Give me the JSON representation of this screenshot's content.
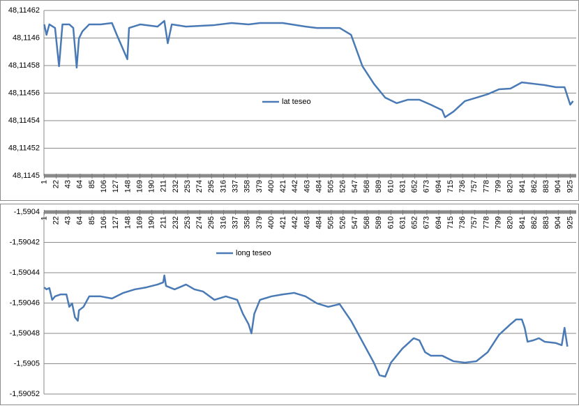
{
  "chart_data": [
    {
      "type": "line",
      "x": [
        1,
        5,
        10,
        20,
        27,
        33,
        45,
        52,
        58,
        62,
        68,
        80,
        100,
        120,
        128,
        147,
        150,
        170,
        200,
        212,
        218,
        225,
        250,
        300,
        330,
        360,
        380,
        420,
        460,
        480,
        520,
        540,
        560,
        580,
        600,
        620,
        640,
        660,
        680,
        700,
        705,
        720,
        740,
        760,
        780,
        800,
        820,
        840,
        860,
        880,
        900,
        915,
        925,
        930
      ],
      "series": [
        {
          "name": "lat teseo",
          "color": "#4a7ab5",
          "values": [
            48.1146099,
            48.1146023,
            48.1146099,
            48.1146073,
            48.1145795,
            48.1146099,
            48.1146099,
            48.1146073,
            48.1145785,
            48.1145997,
            48.1146048,
            48.1146099,
            48.1146099,
            48.1146109,
            48.1146028,
            48.1145846,
            48.1146073,
            48.1146099,
            48.1146083,
            48.1146124,
            48.1145962,
            48.1146099,
            48.1146083,
            48.1146094,
            48.1146109,
            48.1146099,
            48.1146109,
            48.1146109,
            48.1146083,
            48.1146073,
            48.1146073,
            48.1146023,
            48.1145795,
            48.1145668,
            48.1145567,
            48.1145527,
            48.1145552,
            48.1145552,
            48.1145516,
            48.1145476,
            48.1145425,
            48.1145466,
            48.1145542,
            48.1145567,
            48.1145592,
            48.1145628,
            48.1145633,
            48.1145678,
            48.1145668,
            48.1145658,
            48.1145643,
            48.1145643,
            48.1145516,
            48.1145542
          ]
        }
      ],
      "xlim": [
        0.5,
        935.5
      ],
      "xticks": [
        1,
        22,
        43,
        64,
        85,
        106,
        127,
        148,
        169,
        190,
        211,
        232,
        253,
        274,
        295,
        316,
        337,
        358,
        379,
        400,
        421,
        442,
        463,
        484,
        505,
        526,
        547,
        568,
        589,
        610,
        631,
        652,
        673,
        694,
        715,
        736,
        757,
        778,
        799,
        820,
        841,
        862,
        883,
        904,
        925
      ],
      "ylim": [
        48.1145,
        48.11462
      ],
      "yticks": [
        {
          "value": 48.1145,
          "label": "48,1145"
        },
        {
          "value": 48.11452,
          "label": "48,11452"
        },
        {
          "value": 48.11454,
          "label": "48,11454"
        },
        {
          "value": 48.11456,
          "label": "48,11456"
        },
        {
          "value": 48.11458,
          "label": "48,11458"
        },
        {
          "value": 48.1146,
          "label": "48,1146"
        },
        {
          "value": 48.11462,
          "label": "48,11462"
        }
      ],
      "grid": true
    },
    {
      "type": "line",
      "x": [
        1,
        5,
        10,
        15,
        20,
        30,
        40,
        45,
        50,
        55,
        60,
        62,
        70,
        80,
        100,
        120,
        140,
        160,
        180,
        200,
        210,
        212,
        215,
        230,
        250,
        265,
        280,
        300,
        320,
        340,
        350,
        360,
        365,
        370,
        380,
        400,
        420,
        440,
        460,
        480,
        500,
        520,
        540,
        560,
        580,
        590,
        600,
        610,
        630,
        650,
        660,
        670,
        680,
        700,
        720,
        740,
        760,
        780,
        800,
        820,
        830,
        840,
        845,
        850,
        860,
        870,
        880,
        900,
        910,
        915,
        920
      ],
      "series": [
        {
          "name": "long teseo",
          "color": "#4a7ab5",
          "values": [
            -1.5904497,
            -1.590451,
            -1.5904501,
            -1.5904579,
            -1.5904556,
            -1.5904543,
            -1.5904543,
            -1.5904625,
            -1.5904602,
            -1.5904694,
            -1.5904717,
            -1.5904648,
            -1.5904625,
            -1.5904556,
            -1.5904556,
            -1.590457,
            -1.5904533,
            -1.590451,
            -1.5904497,
            -1.5904478,
            -1.5904464,
            -1.5904418,
            -1.5904487,
            -1.590451,
            -1.5904478,
            -1.590451,
            -1.5904524,
            -1.5904579,
            -1.5904556,
            -1.5904579,
            -1.5904671,
            -1.590474,
            -1.59048,
            -1.5904671,
            -1.5904579,
            -1.5904556,
            -1.5904543,
            -1.5904533,
            -1.5904556,
            -1.5904602,
            -1.5904625,
            -1.5904607,
            -1.5904717,
            -1.5904855,
            -1.5904993,
            -1.5905076,
            -1.5905085,
            -1.5904993,
            -1.5904901,
            -1.5904832,
            -1.5904846,
            -1.5904924,
            -1.5904947,
            -1.5904947,
            -1.5904984,
            -1.5904993,
            -1.5904984,
            -1.5904924,
            -1.5904809,
            -1.590474,
            -1.5904708,
            -1.5904708,
            -1.5904763,
            -1.5904855,
            -1.5904846,
            -1.5904832,
            -1.5904855,
            -1.5904864,
            -1.5904878,
            -1.5904763,
            -1.5904887
          ]
        }
      ],
      "xlim": [
        0.5,
        935.5
      ],
      "xticks": [
        1,
        22,
        43,
        64,
        85,
        106,
        127,
        148,
        169,
        190,
        211,
        232,
        253,
        274,
        295,
        316,
        337,
        358,
        379,
        400,
        421,
        442,
        463,
        484,
        505,
        526,
        547,
        568,
        589,
        610,
        631,
        652,
        673,
        694,
        715,
        736,
        757,
        778,
        799,
        820,
        841,
        862,
        883,
        904,
        925
      ],
      "ylim": [
        -1.59052,
        -1.5904
      ],
      "yticks": [
        {
          "value": -1.59052,
          "label": "-1,59052"
        },
        {
          "value": -1.5905,
          "label": "-1,5905"
        },
        {
          "value": -1.59048,
          "label": "-1,59048"
        },
        {
          "value": -1.59046,
          "label": "-1,59046"
        },
        {
          "value": -1.59044,
          "label": "-1,59044"
        },
        {
          "value": -1.59042,
          "label": "-1,59042"
        },
        {
          "value": -1.5904,
          "label": "-1,5904"
        }
      ],
      "grid": true
    }
  ]
}
